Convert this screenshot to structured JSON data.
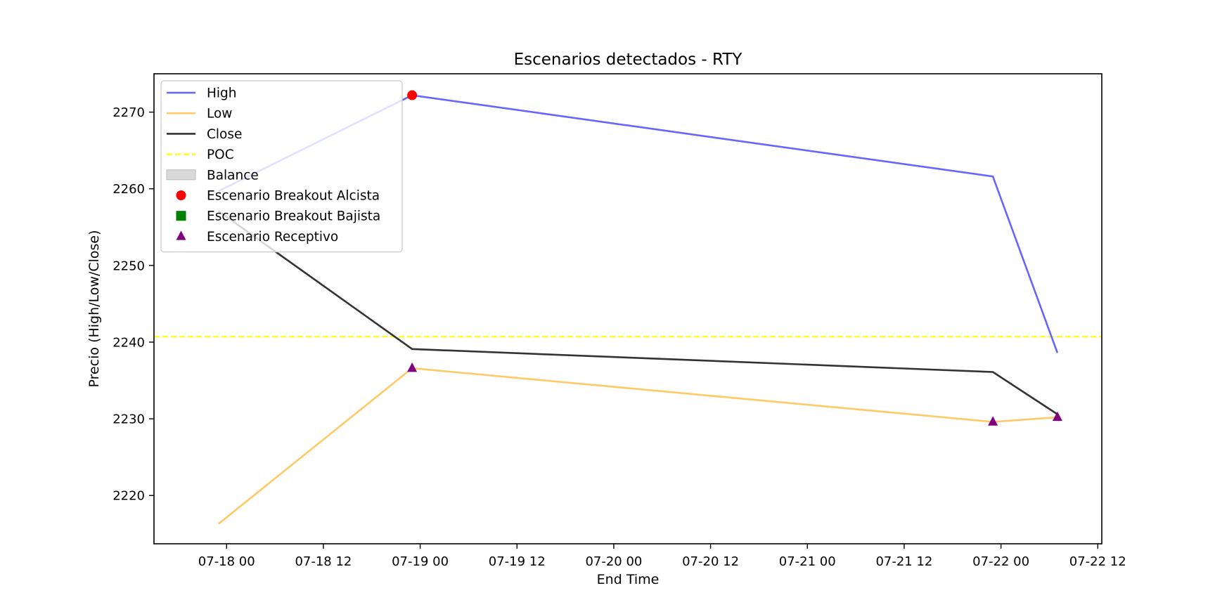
{
  "chart_data": {
    "type": "line",
    "title": "Escenarios detectados - RTY",
    "xlabel": "End Time",
    "ylabel": "Precio (High/Low/Close)",
    "x_ticks": [
      "07-18 00",
      "07-18 12",
      "07-19 00",
      "07-19 12",
      "07-20 00",
      "07-20 12",
      "07-21 00",
      "07-21 12",
      "07-22 00",
      "07-22 12"
    ],
    "y_ticks": [
      "2220",
      "2230",
      "2240",
      "2250",
      "2260",
      "2270"
    ],
    "xlim": [
      "2025-07-17T15:00",
      "2025-07-22T12:30"
    ],
    "ylim": [
      2213.7,
      2275
    ],
    "x": [
      "2025-07-17T23:00",
      "2025-07-18T23:00",
      "2025-07-21T23:00",
      "2025-07-22T07:00"
    ],
    "series": [
      {
        "name": "High",
        "type": "line",
        "color": "#6666ff",
        "values": [
          2259.7,
          2272.2,
          2261.6,
          2238.6
        ]
      },
      {
        "name": "Low",
        "type": "line",
        "color": "#ffc966",
        "values": [
          2216.3,
          2236.6,
          2229.6,
          2230.2
        ]
      },
      {
        "name": "Close",
        "type": "line",
        "color": "#333333",
        "values": [
          2257.1,
          2239.1,
          2236.1,
          2230.6
        ]
      }
    ],
    "poc": {
      "name": "POC",
      "value": 2240.7,
      "color": "#ffff00",
      "style": "dashed"
    },
    "balance": {
      "name": "Balance",
      "color": "#d9d9d9"
    },
    "markers": [
      {
        "name": "Escenario Breakout Alcista",
        "shape": "circle",
        "color": "#ff0000",
        "points": [
          {
            "x": "2025-07-18T23:00",
            "y": 2272.2
          }
        ]
      },
      {
        "name": "Escenario Breakout Bajista",
        "shape": "square",
        "color": "#008000",
        "points": []
      },
      {
        "name": "Escenario Receptivo",
        "shape": "triangle",
        "color": "#800080",
        "points": [
          {
            "x": "2025-07-18T23:00",
            "y": 2236.6
          },
          {
            "x": "2025-07-21T23:00",
            "y": 2229.6
          },
          {
            "x": "2025-07-22T07:00",
            "y": 2230.2
          }
        ]
      }
    ],
    "grid": false,
    "legend_position": "top-left"
  }
}
